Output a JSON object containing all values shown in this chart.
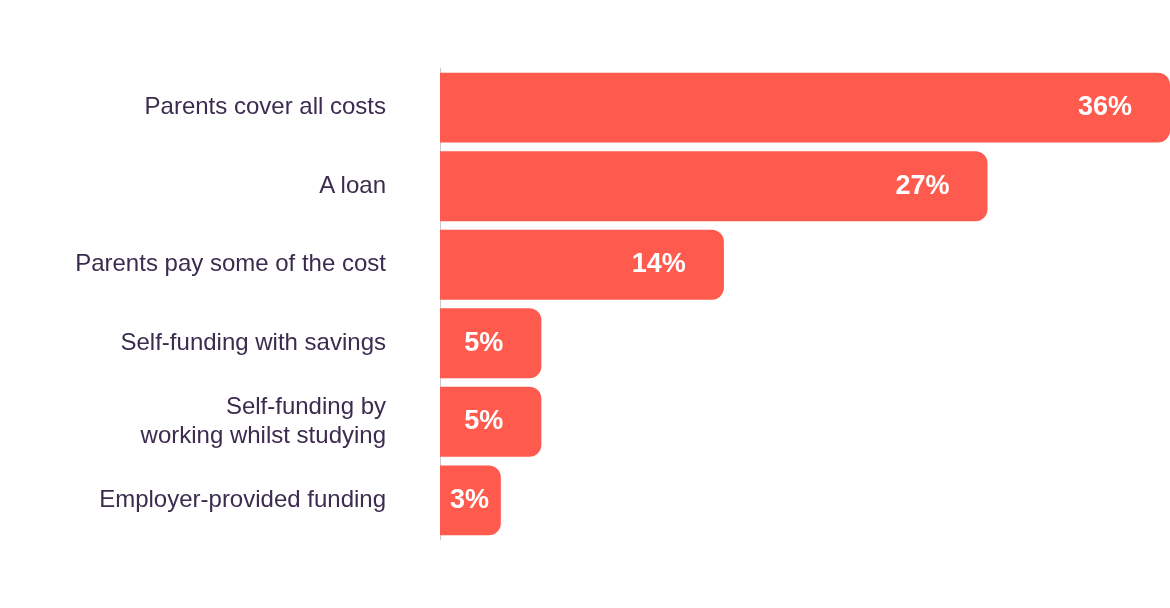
{
  "chart_data": {
    "type": "bar",
    "orientation": "horizontal",
    "categories": [
      "Parents cover all costs",
      "A loan",
      "Parents pay some of the cost",
      "Self-funding with savings",
      "Self-funding by working whilst studying",
      "Employer-provided funding"
    ],
    "values": [
      36,
      27,
      14,
      5,
      5,
      3
    ],
    "value_labels": [
      "36%",
      "27%",
      "14%",
      "5%",
      "5%",
      "3%"
    ],
    "color": "#ff5a4e",
    "tick_labels": "y"
  }
}
